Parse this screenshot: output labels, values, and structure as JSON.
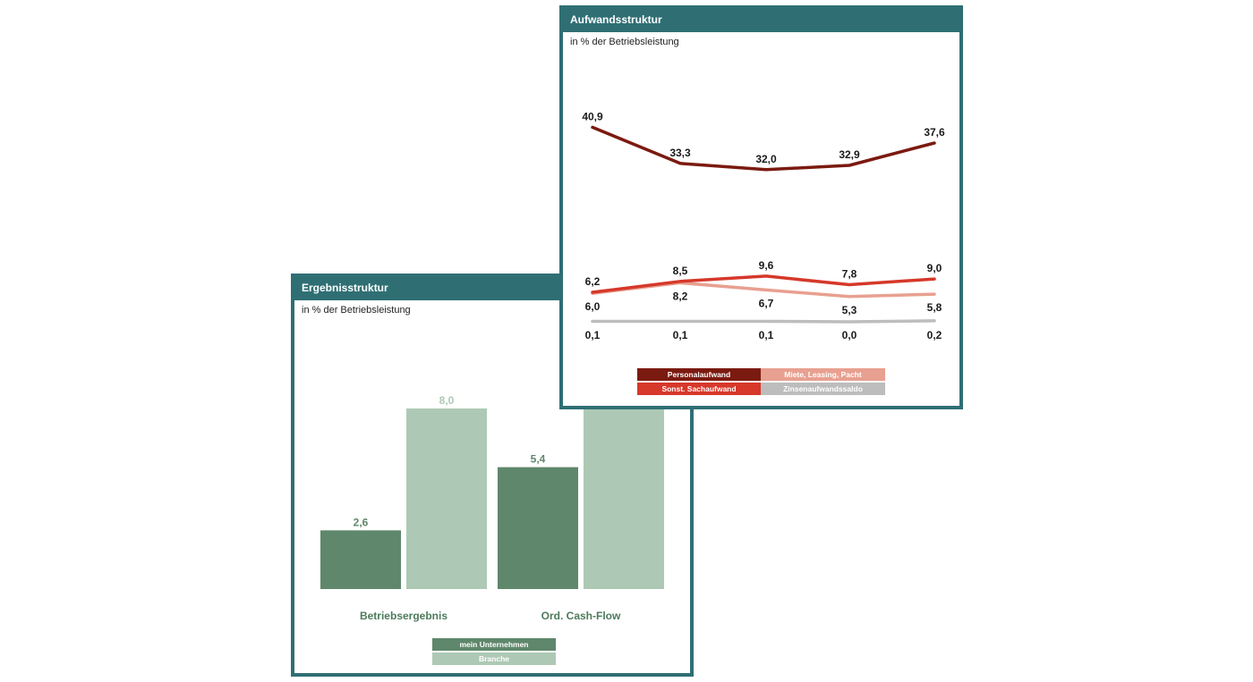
{
  "aufwand": {
    "title": "Aufwandsstruktur",
    "subtitle": "in % der Betriebsleistung",
    "legend": [
      "Personalaufwand",
      "Miete, Leasing, Pacht",
      "Sonst. Sachaufwand",
      "Zinsenaufwandssaldo"
    ]
  },
  "ergebnis": {
    "title": "Ergebnisstruktur",
    "subtitle": "in % der Betriebsleistung",
    "legend": [
      "mein Unternehmen",
      "Branche"
    ]
  },
  "chart_data": [
    {
      "type": "line",
      "title": "Aufwandsstruktur",
      "subtitle": "in % der Betriebsleistung",
      "x": [
        1,
        2,
        3,
        4,
        5
      ],
      "series": [
        {
          "name": "Personalaufwand",
          "color": "#7b1a10",
          "values": [
            40.9,
            33.3,
            32.0,
            32.9,
            37.6
          ],
          "labels": [
            "40,9",
            "33,3",
            "32,0",
            "32,9",
            "37,6"
          ]
        },
        {
          "name": "Miete, Leasing, Pacht",
          "color": "#e8a090",
          "values": [
            6.0,
            8.2,
            6.7,
            5.3,
            5.8
          ],
          "labels": [
            "6,0",
            "8,2",
            "6,7",
            "5,3",
            "5,8"
          ]
        },
        {
          "name": "Sonst. Sachaufwand",
          "color": "#d6382a",
          "values": [
            6.2,
            8.5,
            9.6,
            7.8,
            9.0
          ],
          "labels": [
            "6,2",
            "8,5",
            "9,6",
            "7,8",
            "9,0"
          ]
        },
        {
          "name": "Zinsenaufwandssaldo",
          "color": "#bdbdbd",
          "values": [
            0.1,
            0.1,
            0.1,
            0.0,
            0.2
          ],
          "labels": [
            "0,1",
            "0,1",
            "0,1",
            "0,0",
            "0,2"
          ]
        }
      ],
      "grid": false,
      "legend_position": "bottom"
    },
    {
      "type": "bar",
      "title": "Ergebnisstruktur",
      "subtitle": "in % der Betriebsleistung",
      "categories": [
        "Betriebsergebnis",
        "Ord. Cash-Flow"
      ],
      "series": [
        {
          "name": "mein Unternehmen",
          "color": "#5f876b",
          "values": [
            2.6,
            5.4
          ],
          "labels": [
            "2,6",
            "5,4"
          ]
        },
        {
          "name": "Branche",
          "color": "#adc9b5",
          "values": [
            8.0,
            null
          ],
          "labels": [
            "8,0",
            null
          ]
        }
      ],
      "grid": false,
      "legend_position": "bottom"
    }
  ]
}
